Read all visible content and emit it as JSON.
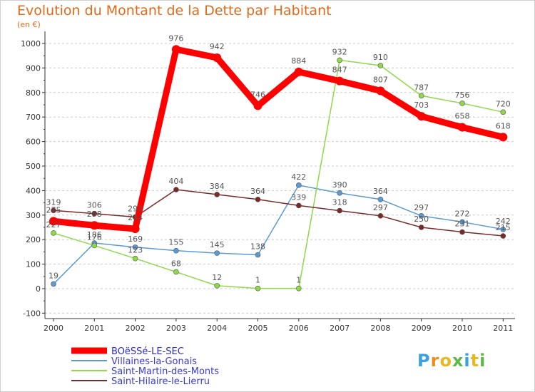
{
  "title": "Evolution du Montant de la Dette par Habitant",
  "subtitle": "(en €)",
  "brand": "Proxiti",
  "chart_data": {
    "type": "line",
    "title": "Evolution du Montant de la Dette par Habitant",
    "subtitle": "(en €)",
    "xlabel": "",
    "ylabel": "",
    "categories": [
      "2000",
      "2001",
      "2002",
      "2003",
      "2004",
      "2005",
      "2006",
      "2007",
      "2008",
      "2009",
      "2010",
      "2011"
    ],
    "yticks": [
      -100,
      0,
      100,
      200,
      300,
      400,
      500,
      600,
      700,
      800,
      900,
      1000
    ],
    "ylim": [
      -100,
      1000
    ],
    "grid": "horizontal",
    "legend": "bottom-left",
    "series": [
      {
        "name": "BOëSSé-LE-SEC",
        "color": "#ff0000",
        "values": [
          275,
          258,
          244,
          976,
          942,
          746,
          884,
          847,
          807,
          703,
          658,
          618
        ]
      },
      {
        "name": "Villaines-la-Gonais",
        "color": "#5b9bd5",
        "values": [
          19,
          186,
          169,
          155,
          145,
          138,
          422,
          390,
          364,
          297,
          272,
          242
        ]
      },
      {
        "name": "Saint-Martin-des-Monts",
        "color": "#8fd84a",
        "values": [
          227,
          176,
          123,
          68,
          12,
          1,
          1,
          932,
          910,
          787,
          756,
          720
        ]
      },
      {
        "name": "Saint-Hilaire-le-Lierru",
        "color": "#7b2a2a",
        "values": [
          319,
          306,
          292,
          404,
          384,
          364,
          339,
          318,
          297,
          250,
          231,
          215
        ]
      }
    ]
  }
}
